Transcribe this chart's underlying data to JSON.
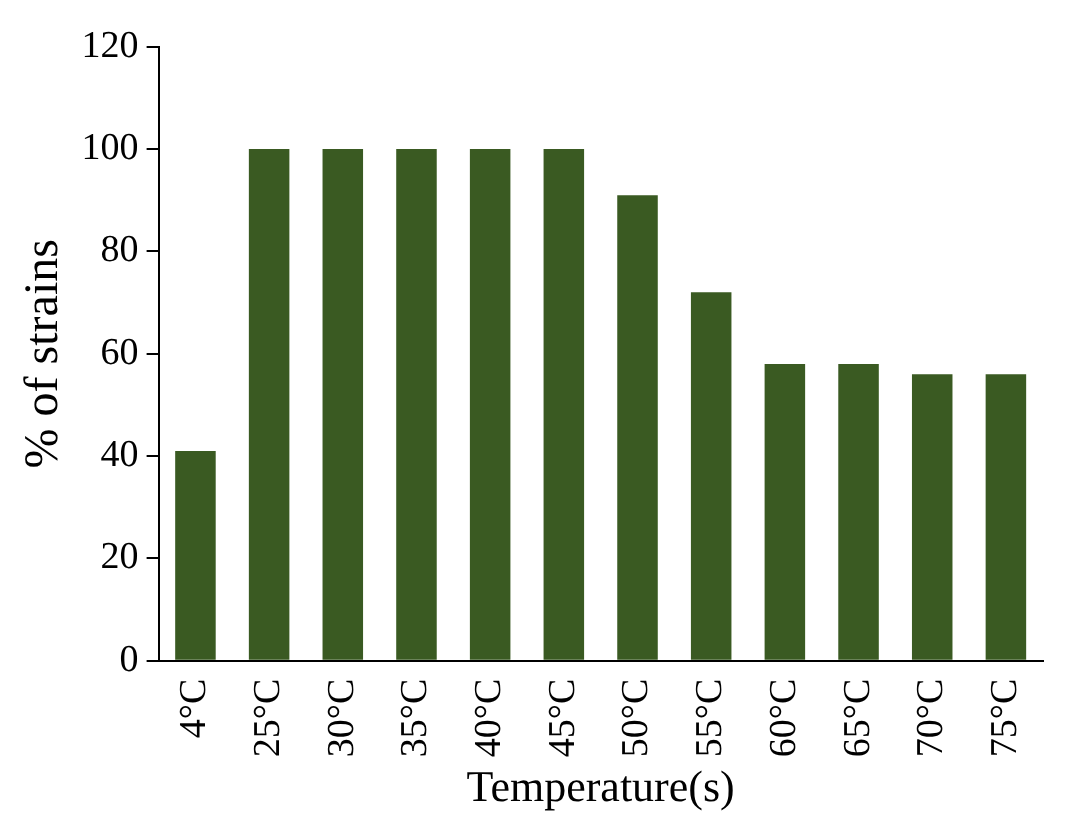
{
  "chart_data": {
    "type": "bar",
    "xlabel": "Temperature(s)",
    "ylabel": "% of strains",
    "categories": [
      "4°C",
      "25°C",
      "30°C",
      "35°C",
      "40°C",
      "45°C",
      "50°C",
      "55°C",
      "60°C",
      "65°C",
      "70°C",
      "75°C"
    ],
    "values": [
      41,
      100,
      100,
      100,
      100,
      100,
      91,
      72,
      58,
      58,
      56,
      56
    ],
    "color": "#3a5a22",
    "ylim": [
      0,
      120
    ],
    "yticks": [
      0,
      20,
      40,
      60,
      80,
      100,
      120
    ],
    "grid": false,
    "legend": false
  }
}
